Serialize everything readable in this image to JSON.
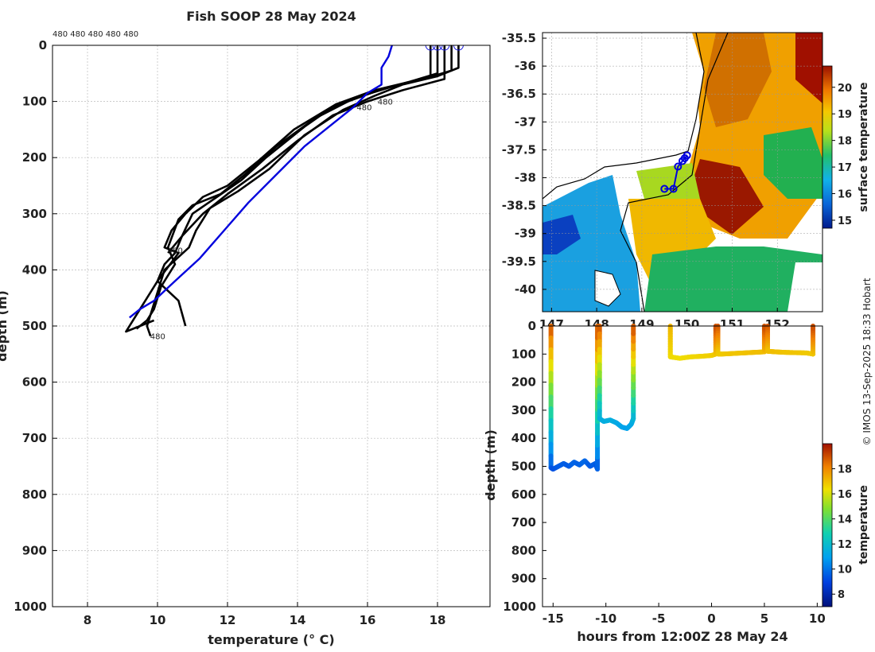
{
  "figure": {
    "title": "Fish SOOP 28 May 2024",
    "credit": "© IMOS 13-Sep-2025 18:33 Hobart",
    "top_ids": "480 480 480 480 480"
  },
  "chart_data": [
    {
      "type": "line",
      "name": "temperature-depth-profiles",
      "xlabel": "temperature (° C)",
      "ylabel": "depth (m)",
      "xlim": [
        7,
        19.5
      ],
      "ylim": [
        1000,
        0
      ],
      "xticks": [
        8,
        10,
        12,
        14,
        16,
        18
      ],
      "yticks": [
        0,
        100,
        200,
        300,
        400,
        500,
        600,
        700,
        800,
        900,
        1000
      ],
      "grid": true,
      "probe_id": "480",
      "series": [
        {
          "name": "profile 1",
          "color": "#000000",
          "x": [
            18.6,
            18.6,
            18.0,
            17.0,
            16.2,
            15.3,
            14.2,
            13.2,
            12.3,
            11.5,
            11.1,
            10.9,
            10.2,
            10.0,
            9.8,
            9.7,
            9.8
          ],
          "y": [
            0,
            40,
            55,
            70,
            90,
            115,
            160,
            220,
            260,
            290,
            330,
            360,
            400,
            440,
            480,
            500,
            518
          ]
        },
        {
          "name": "profile 2",
          "color": "#000000",
          "x": [
            18.4,
            18.4,
            17.6,
            16.6,
            15.6,
            14.5,
            13.4,
            12.5,
            11.8,
            11.0,
            10.6,
            10.3,
            10.5,
            10.1,
            9.9,
            9.7,
            9.4
          ],
          "y": [
            0,
            45,
            60,
            75,
            95,
            130,
            180,
            230,
            265,
            285,
            310,
            360,
            390,
            430,
            470,
            490,
            505
          ]
        },
        {
          "name": "profile 3",
          "color": "#000000",
          "x": [
            18.0,
            18.0,
            17.2,
            16.2,
            15.1,
            13.9,
            12.9,
            12.0,
            11.3,
            10.8,
            10.4,
            10.2,
            10.6,
            10.0,
            9.6,
            9.3,
            9.1,
            9.5,
            9.9
          ],
          "y": [
            0,
            50,
            65,
            80,
            105,
            150,
            205,
            250,
            270,
            300,
            330,
            360,
            370,
            420,
            460,
            490,
            510,
            500,
            490
          ]
        },
        {
          "name": "profile 4",
          "color": "#000000",
          "x": [
            17.8,
            17.8,
            16.9,
            16.1,
            15.0,
            14.2,
            13.1,
            12.4,
            11.7,
            11.0,
            10.7,
            10.5,
            10.2,
            10.0,
            10.6,
            10.8
          ],
          "y": [
            0,
            55,
            70,
            85,
            110,
            145,
            200,
            240,
            270,
            300,
            340,
            370,
            390,
            420,
            455,
            500
          ]
        },
        {
          "name": "profile 5",
          "color": "#000000",
          "x": [
            18.2,
            18.2,
            17.0,
            16.0,
            15.0,
            14.0,
            13.0,
            12.0,
            11.3,
            10.7,
            10.3
          ],
          "y": [
            0,
            60,
            80,
            100,
            125,
            170,
            220,
            265,
            300,
            340,
            370
          ]
        },
        {
          "name": "mean profile",
          "color": "#0000dd",
          "x": [
            16.7,
            16.6,
            16.4,
            16.4,
            16.0,
            15.6,
            15.0,
            14.2,
            13.4,
            12.6,
            11.9,
            11.2,
            10.5,
            9.9,
            9.5,
            9.2
          ],
          "y": [
            0,
            20,
            40,
            70,
            85,
            110,
            140,
            180,
            230,
            280,
            330,
            380,
            420,
            455,
            470,
            485
          ]
        }
      ],
      "surface_markers_x": [
        17.8,
        18.0,
        18.2,
        18.6
      ]
    },
    {
      "type": "heatmap",
      "name": "surface-temperature-map",
      "xlim": [
        146.8,
        153.0
      ],
      "ylim": [
        -40.4,
        -35.4
      ],
      "xticks": [
        147,
        148,
        149,
        150,
        151,
        152
      ],
      "xtick_labels": [
        "147",
        "148",
        "149",
        "150",
        "151",
        "152"
      ],
      "yticks": [
        -35.5,
        -36,
        -36.5,
        -37,
        -37.5,
        -38,
        -38.5,
        -39,
        -39.5,
        -40
      ],
      "colorbar": {
        "label": "surface temperature",
        "range": [
          14.7,
          20.8
        ],
        "ticks": [
          15,
          16,
          17,
          18,
          19,
          20
        ]
      },
      "drop_locations": [
        {
          "lon": 150.0,
          "lat": -37.6
        },
        {
          "lon": 149.95,
          "lat": -37.65
        },
        {
          "lon": 149.9,
          "lat": -37.7
        },
        {
          "lon": 149.8,
          "lat": -37.8
        },
        {
          "lon": 149.7,
          "lat": -38.2
        },
        {
          "lon": 149.5,
          "lat": -38.2
        }
      ]
    },
    {
      "type": "scatter",
      "name": "depth-time-section",
      "xlabel": "hours from 12:00Z 28 May 24",
      "ylabel": "depth (m)",
      "xlim": [
        -16,
        10.5
      ],
      "ylim": [
        1000,
        0
      ],
      "xticks": [
        -15,
        -10,
        -5,
        0,
        5,
        10
      ],
      "yticks": [
        0,
        100,
        200,
        300,
        400,
        500,
        600,
        700,
        800,
        900,
        1000
      ],
      "colorbar": {
        "label": "temperature",
        "range": [
          7,
          20
        ],
        "ticks": [
          8,
          10,
          12,
          14,
          16,
          18
        ]
      },
      "tracks": [
        {
          "x": [
            -15.2,
            -15.2,
            -15.0,
            -14.5,
            -14.0,
            -13.5,
            -13.0,
            -12.5,
            -12.0,
            -11.5,
            -11.0,
            -10.8,
            -10.8
          ],
          "y": [
            0,
            505,
            510,
            500,
            490,
            500,
            485,
            495,
            480,
            500,
            490,
            510,
            0
          ],
          "t": [
            19,
            9.5,
            9.3,
            9.5,
            9.6,
            9.5,
            9.7,
            9.6,
            9.8,
            9.5,
            9.6,
            9.3,
            19
          ]
        },
        {
          "x": [
            -10.6,
            -10.6,
            -10.2,
            -9.6,
            -9.0,
            -8.5,
            -8.0,
            -7.6,
            -7.4,
            -7.4
          ],
          "y": [
            0,
            330,
            340,
            335,
            345,
            360,
            365,
            350,
            330,
            0
          ],
          "t": [
            19,
            11.5,
            11.4,
            11.5,
            11.3,
            11.1,
            11.0,
            11.2,
            11.5,
            19
          ]
        },
        {
          "x": [
            -3.9,
            -3.9,
            -3.0,
            -2.0,
            -1.0,
            0.0,
            0.4,
            0.4
          ],
          "y": [
            0,
            110,
            115,
            110,
            108,
            105,
            100,
            0
          ],
          "t": [
            17.2,
            16.5,
            16.4,
            16.5,
            16.6,
            16.7,
            16.8,
            19
          ]
        },
        {
          "x": [
            0.6,
            0.6,
            1.0,
            2.0,
            3.0,
            4.0,
            5.0,
            5.0
          ],
          "y": [
            0,
            100,
            100,
            98,
            96,
            94,
            92,
            0
          ],
          "t": [
            19,
            16.8,
            16.8,
            16.9,
            16.9,
            17.0,
            17.0,
            19
          ]
        },
        {
          "x": [
            5.3,
            5.3,
            6.0,
            7.0,
            8.0,
            9.0,
            9.6,
            9.6,
            9.6
          ],
          "y": [
            0,
            90,
            92,
            94,
            95,
            96,
            100,
            100,
            0
          ],
          "t": [
            19,
            17.0,
            17.0,
            16.9,
            16.9,
            16.8,
            16.8,
            16.8,
            19
          ]
        }
      ]
    }
  ],
  "map_ticks": {
    "lon_labels": [
      "147",
      "148",
      "149",
      "150",
      "151",
      "152"
    ],
    "lat_labels": [
      "-35.5",
      "-36",
      "-36.5",
      "-37",
      "-37.5",
      "-38",
      "-38.5",
      "-39",
      "-39.5",
      "-40"
    ]
  }
}
